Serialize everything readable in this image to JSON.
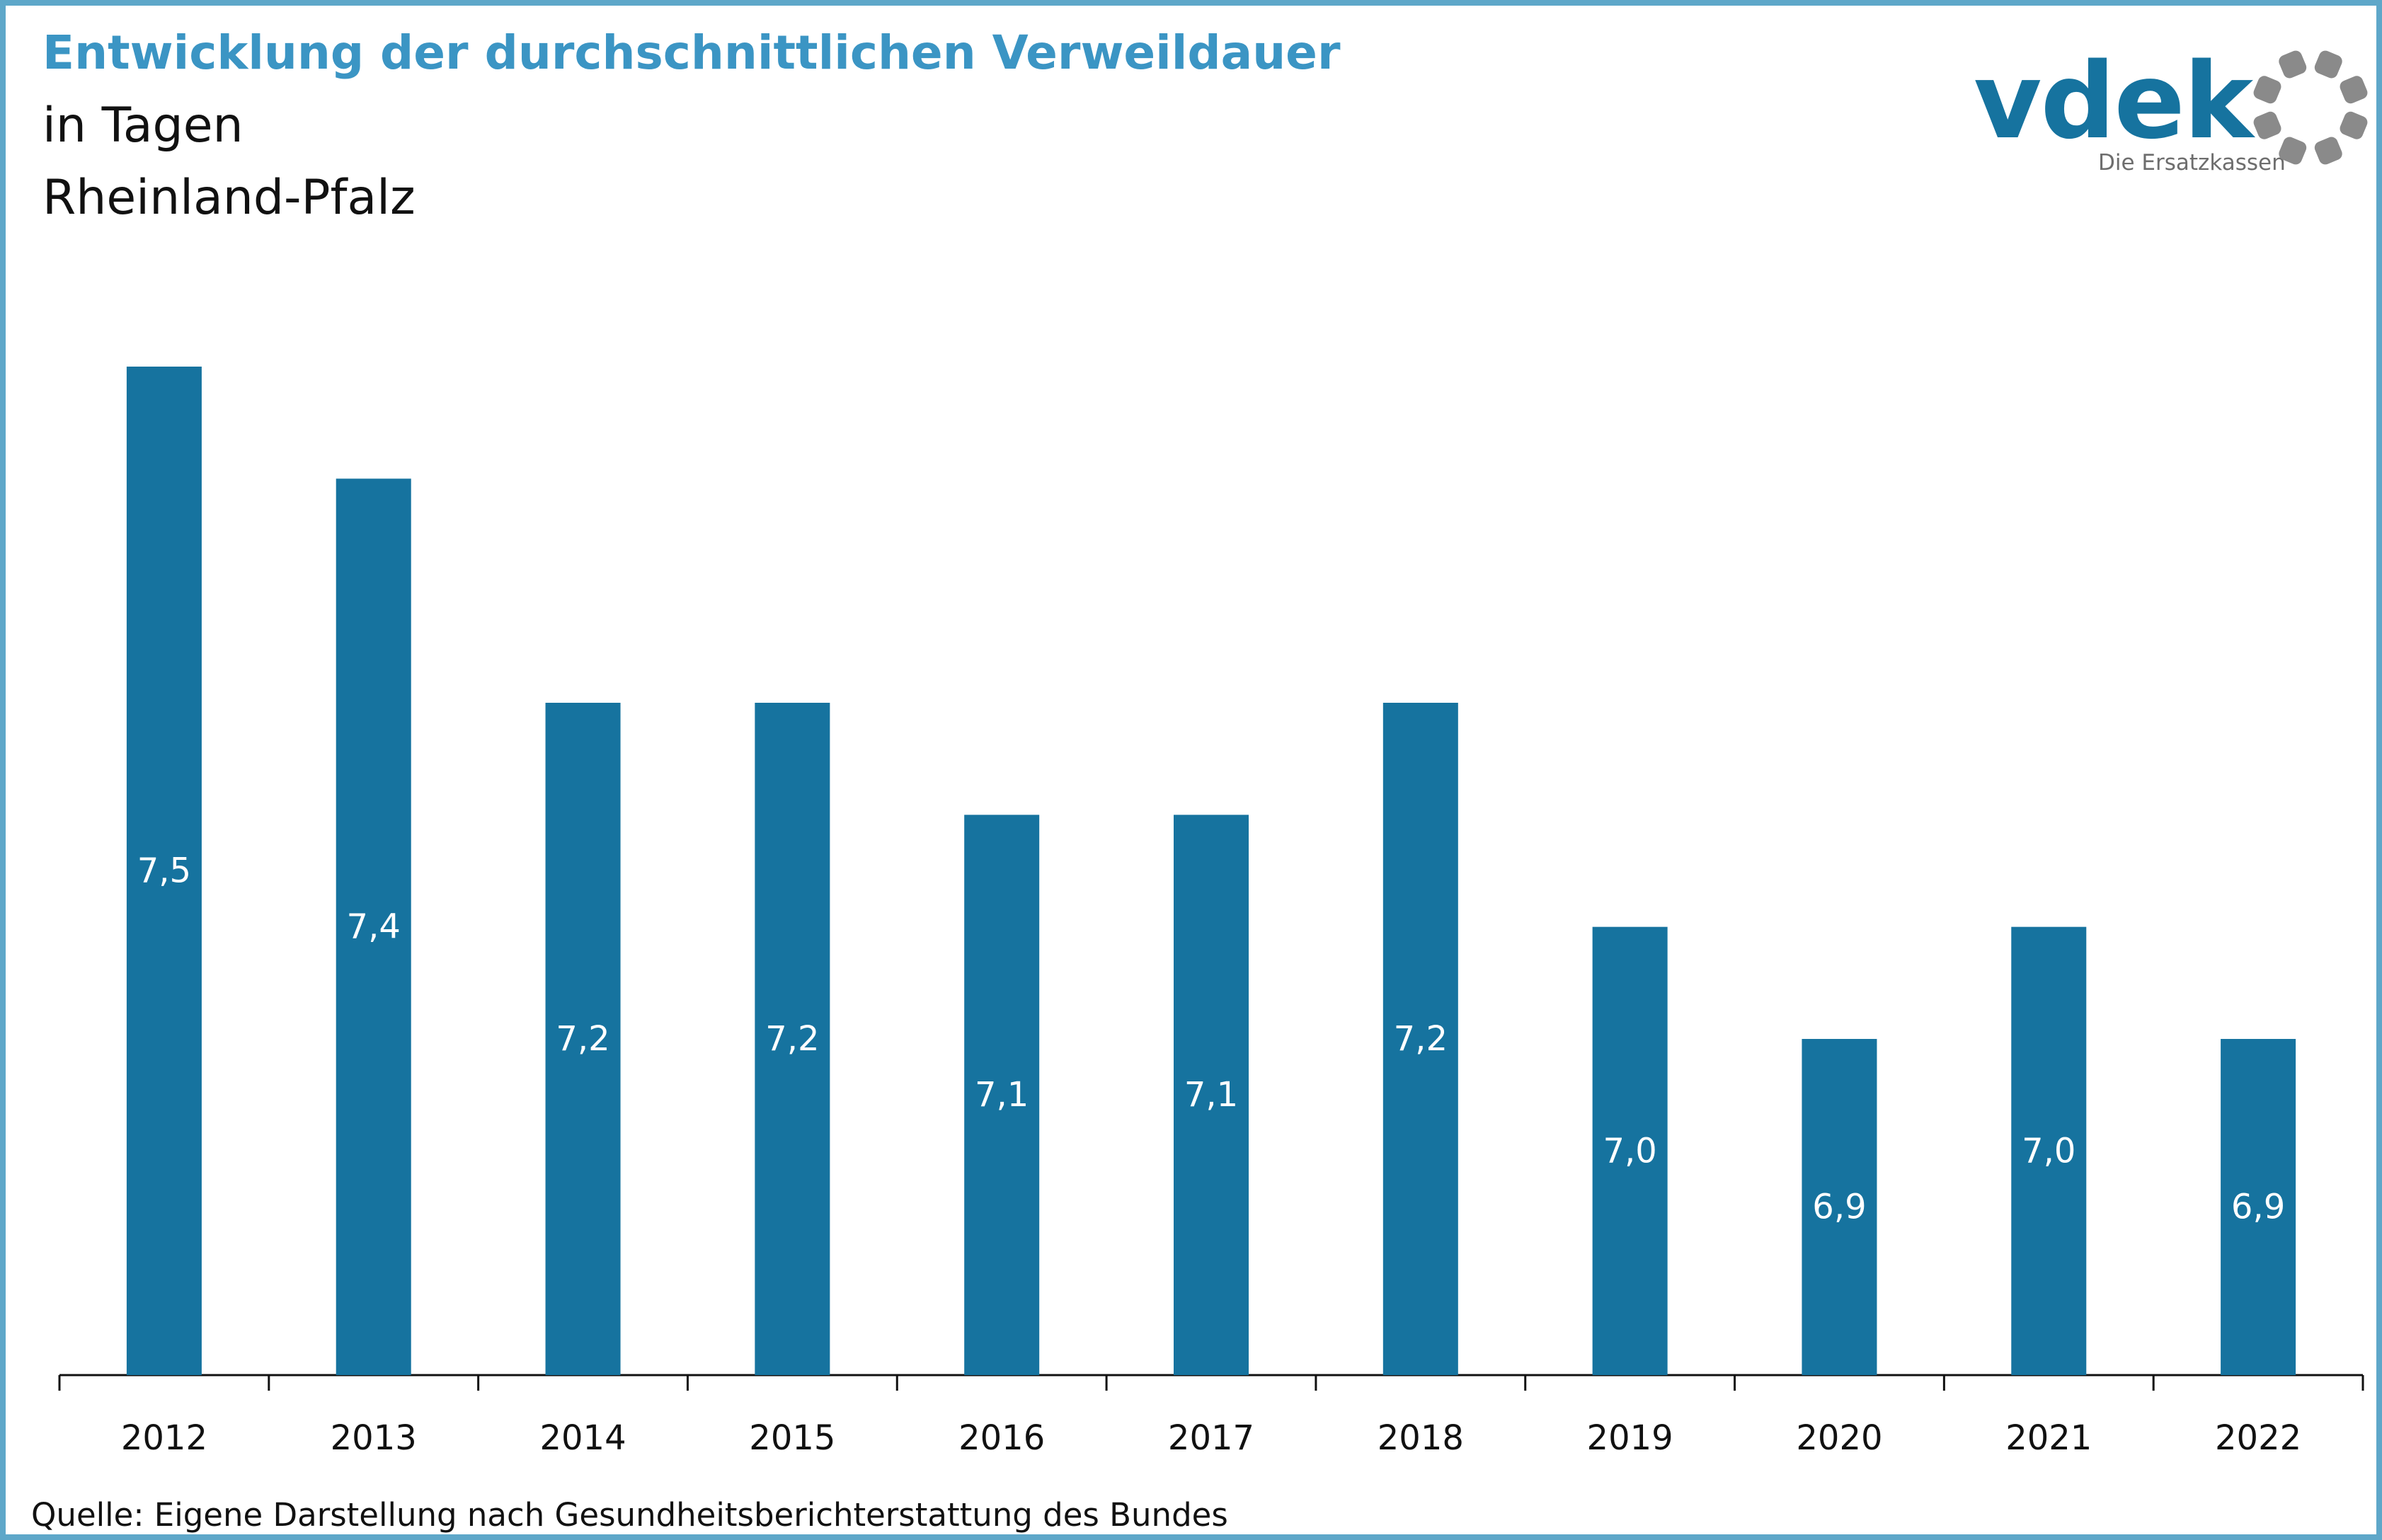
{
  "header": {
    "title": "Entwicklung der durchschnittlichen Verweildauer",
    "subtitle_line1": "in Tagen",
    "subtitle_line2": "Rheinland-Pfalz"
  },
  "logo": {
    "wordmark": "vdek",
    "tagline": "Die Ersatzkassen",
    "icon": "ring-of-dots-icon",
    "colors": {
      "word": "#16739f",
      "dots": "#8a8a8a"
    }
  },
  "source": "Quelle: Eigene Darstellung nach Gesundheitsberichterstattung des Bundes",
  "colors": {
    "bar": "#16739f",
    "frame": "#5ea7c9",
    "title": "#3b95c4",
    "label_inside": "#ffffff"
  },
  "chart_data": {
    "type": "bar",
    "categories": [
      "2012",
      "2013",
      "2014",
      "2015",
      "2016",
      "2017",
      "2018",
      "2019",
      "2020",
      "2021",
      "2022"
    ],
    "values": [
      7.5,
      7.4,
      7.2,
      7.2,
      7.1,
      7.1,
      7.2,
      7.0,
      6.9,
      7.0,
      6.9
    ],
    "value_labels": [
      "7,5",
      "7,4",
      "7,2",
      "7,2",
      "7,1",
      "7,1",
      "7,2",
      "7,0",
      "6,9",
      "7,0",
      "6,9"
    ],
    "title": "Entwicklung der durchschnittlichen Verweildauer",
    "xlabel": "",
    "ylabel": "",
    "ylim": [
      6.6,
      7.5
    ],
    "grid": false,
    "legend": "none",
    "y_axis_visible": false
  }
}
